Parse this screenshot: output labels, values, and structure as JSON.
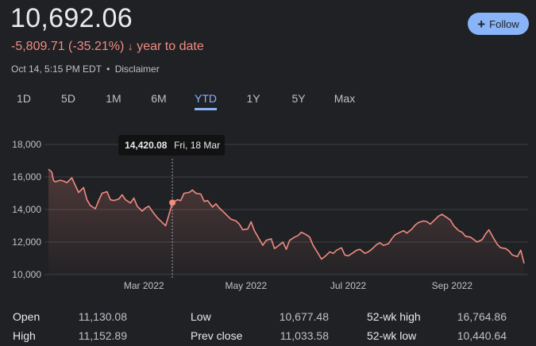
{
  "quote": {
    "price": "10,692.06",
    "change": "-5,809.71 (-35.21%)",
    "change_arrow": "↓",
    "change_period": "year to date",
    "timestamp": "Oct 14, 5:15 PM EDT",
    "separator": "•",
    "disclaimer": "Disclaimer",
    "follow_label": "Follow",
    "follow_icon": "+"
  },
  "tabs": [
    {
      "label": "1D",
      "active": false
    },
    {
      "label": "5D",
      "active": false
    },
    {
      "label": "1M",
      "active": false
    },
    {
      "label": "6M",
      "active": false
    },
    {
      "label": "YTD",
      "active": true
    },
    {
      "label": "1Y",
      "active": false
    },
    {
      "label": "5Y",
      "active": false
    },
    {
      "label": "Max",
      "active": false
    }
  ],
  "chart_data": {
    "type": "area",
    "title": "",
    "xlabel": "",
    "ylabel": "",
    "ylim": [
      10000,
      18000
    ],
    "xlim": [
      "2022-01-03",
      "2022-10-14"
    ],
    "y_ticks": [
      {
        "value": 10000,
        "label": "10,000"
      },
      {
        "value": 12000,
        "label": "12,000"
      },
      {
        "value": 14000,
        "label": "14,000"
      },
      {
        "value": 16000,
        "label": "16,000"
      },
      {
        "value": 18000,
        "label": "18,000"
      }
    ],
    "x_ticks": [
      {
        "date": "2022-03-01",
        "label": "Mar 2022"
      },
      {
        "date": "2022-05-01",
        "label": "May 2022"
      },
      {
        "date": "2022-07-01",
        "label": "Jul 2022"
      },
      {
        "date": "2022-09-01",
        "label": "Sep 2022"
      }
    ],
    "grid": true,
    "line_color": "#f28b82",
    "tooltip": {
      "date": "2022-03-18",
      "value": 14420.08,
      "value_label": "14,420.08",
      "date_label": "Fri, 18 Mar"
    },
    "series": [
      {
        "points": [
          [
            "2022-01-03",
            16480
          ],
          [
            "2022-01-05",
            16300
          ],
          [
            "2022-01-06",
            15800
          ],
          [
            "2022-01-07",
            15700
          ],
          [
            "2022-01-10",
            15800
          ],
          [
            "2022-01-12",
            15750
          ],
          [
            "2022-01-14",
            15650
          ],
          [
            "2022-01-17",
            15950
          ],
          [
            "2022-01-19",
            15500
          ],
          [
            "2022-01-21",
            15050
          ],
          [
            "2022-01-24",
            15350
          ],
          [
            "2022-01-26",
            14600
          ],
          [
            "2022-01-28",
            14250
          ],
          [
            "2022-01-31",
            14050
          ],
          [
            "2022-02-02",
            14550
          ],
          [
            "2022-02-04",
            15000
          ],
          [
            "2022-02-07",
            15100
          ],
          [
            "2022-02-09",
            14600
          ],
          [
            "2022-02-11",
            14550
          ],
          [
            "2022-02-14",
            14650
          ],
          [
            "2022-02-16",
            14900
          ],
          [
            "2022-02-18",
            14600
          ],
          [
            "2022-02-21",
            14400
          ],
          [
            "2022-02-23",
            14700
          ],
          [
            "2022-02-25",
            14200
          ],
          [
            "2022-02-28",
            13900
          ],
          [
            "2022-03-02",
            14100
          ],
          [
            "2022-03-04",
            14200
          ],
          [
            "2022-03-07",
            13750
          ],
          [
            "2022-03-09",
            13500
          ],
          [
            "2022-03-11",
            13300
          ],
          [
            "2022-03-14",
            13000
          ],
          [
            "2022-03-16",
            13700
          ],
          [
            "2022-03-18",
            14420.08
          ],
          [
            "2022-03-21",
            14600
          ],
          [
            "2022-03-23",
            14550
          ],
          [
            "2022-03-25",
            15000
          ],
          [
            "2022-03-28",
            15050
          ],
          [
            "2022-03-30",
            15200
          ],
          [
            "2022-04-01",
            15000
          ],
          [
            "2022-04-04",
            14950
          ],
          [
            "2022-04-06",
            14500
          ],
          [
            "2022-04-08",
            14550
          ],
          [
            "2022-04-11",
            14150
          ],
          [
            "2022-04-13",
            14350
          ],
          [
            "2022-04-15",
            14100
          ],
          [
            "2022-04-18",
            13800
          ],
          [
            "2022-04-20",
            13600
          ],
          [
            "2022-04-22",
            13400
          ],
          [
            "2022-04-25",
            13300
          ],
          [
            "2022-04-27",
            13100
          ],
          [
            "2022-04-29",
            12750
          ],
          [
            "2022-05-02",
            12800
          ],
          [
            "2022-05-04",
            13250
          ],
          [
            "2022-05-06",
            12700
          ],
          [
            "2022-05-09",
            12150
          ],
          [
            "2022-05-11",
            11800
          ],
          [
            "2022-05-13",
            12100
          ],
          [
            "2022-05-16",
            12200
          ],
          [
            "2022-05-18",
            11600
          ],
          [
            "2022-05-20",
            11750
          ],
          [
            "2022-05-23",
            12000
          ],
          [
            "2022-05-25",
            11550
          ],
          [
            "2022-05-27",
            12100
          ],
          [
            "2022-05-30",
            12300
          ],
          [
            "2022-06-01",
            12400
          ],
          [
            "2022-06-03",
            12600
          ],
          [
            "2022-06-06",
            12450
          ],
          [
            "2022-06-08",
            12300
          ],
          [
            "2022-06-10",
            11800
          ],
          [
            "2022-06-13",
            11300
          ],
          [
            "2022-06-15",
            10950
          ],
          [
            "2022-06-17",
            11100
          ],
          [
            "2022-06-20",
            11400
          ],
          [
            "2022-06-22",
            11300
          ],
          [
            "2022-06-24",
            11500
          ],
          [
            "2022-06-27",
            11650
          ],
          [
            "2022-06-29",
            11200
          ],
          [
            "2022-07-01",
            11150
          ],
          [
            "2022-07-04",
            11350
          ],
          [
            "2022-07-06",
            11500
          ],
          [
            "2022-07-08",
            11550
          ],
          [
            "2022-07-11",
            11300
          ],
          [
            "2022-07-13",
            11400
          ],
          [
            "2022-07-15",
            11550
          ],
          [
            "2022-07-18",
            11850
          ],
          [
            "2022-07-20",
            11950
          ],
          [
            "2022-07-22",
            11800
          ],
          [
            "2022-07-25",
            11900
          ],
          [
            "2022-07-27",
            12200
          ],
          [
            "2022-07-29",
            12450
          ],
          [
            "2022-08-01",
            12600
          ],
          [
            "2022-08-03",
            12700
          ],
          [
            "2022-08-05",
            12550
          ],
          [
            "2022-08-08",
            12800
          ],
          [
            "2022-08-10",
            13050
          ],
          [
            "2022-08-12",
            13200
          ],
          [
            "2022-08-15",
            13300
          ],
          [
            "2022-08-17",
            13250
          ],
          [
            "2022-08-19",
            13100
          ],
          [
            "2022-08-22",
            13400
          ],
          [
            "2022-08-24",
            13600
          ],
          [
            "2022-08-26",
            13700
          ],
          [
            "2022-08-29",
            13500
          ],
          [
            "2022-08-31",
            13350
          ],
          [
            "2022-09-02",
            13000
          ],
          [
            "2022-09-05",
            12700
          ],
          [
            "2022-09-07",
            12600
          ],
          [
            "2022-09-09",
            12350
          ],
          [
            "2022-09-12",
            12300
          ],
          [
            "2022-09-14",
            12150
          ],
          [
            "2022-09-16",
            12000
          ],
          [
            "2022-09-19",
            12150
          ],
          [
            "2022-09-21",
            12500
          ],
          [
            "2022-09-23",
            12750
          ],
          [
            "2022-09-26",
            12200
          ],
          [
            "2022-09-28",
            11850
          ],
          [
            "2022-09-30",
            11650
          ],
          [
            "2022-10-03",
            11600
          ],
          [
            "2022-10-05",
            11450
          ],
          [
            "2022-10-07",
            11200
          ],
          [
            "2022-10-10",
            11100
          ],
          [
            "2022-10-12",
            11500
          ],
          [
            "2022-10-14",
            10692.06
          ]
        ]
      }
    ]
  },
  "stats": [
    {
      "label": "Open",
      "value": "11,130.08"
    },
    {
      "label": "Low",
      "value": "10,677.48"
    },
    {
      "label": "52-wk high",
      "value": "16,764.86"
    },
    {
      "label": "High",
      "value": "11,152.89"
    },
    {
      "label": "Prev close",
      "value": "11,033.58"
    },
    {
      "label": "52-wk low",
      "value": "10,440.64"
    }
  ]
}
